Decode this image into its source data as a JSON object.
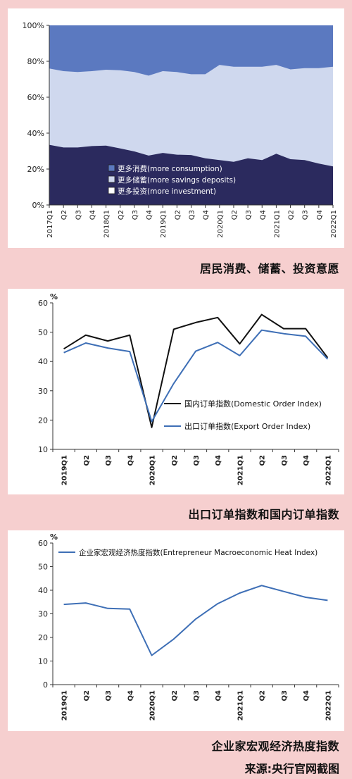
{
  "captions": {
    "chart1": "居民消费、储蓄、投资意愿",
    "chart2": "出口订单指数和国内订单指数",
    "chart3": "企业家宏观经济热度指数",
    "source": "来源:央行官网截图"
  },
  "colors": {
    "background": "#f6cfcf",
    "consumption": "#5b79c0",
    "savings": "#cfd8ee",
    "investment": "#2b2a5e",
    "domestic": "#111111",
    "export": "#3e6fb6",
    "heat": "#3e6fb6"
  },
  "chart_data": [
    {
      "type": "area",
      "stacked": true,
      "x": [
        "2017Q1",
        "Q2",
        "Q3",
        "Q4",
        "2018Q1",
        "Q2",
        "Q3",
        "Q4",
        "2019Q1",
        "Q2",
        "Q3",
        "Q4",
        "2020Q1",
        "Q2",
        "Q3",
        "Q4",
        "2021Q1",
        "Q2",
        "Q3",
        "Q4",
        "2022Q1"
      ],
      "yticks": [
        "0%",
        "20%",
        "40%",
        "60%",
        "80%",
        "100%"
      ],
      "ylim": [
        0,
        100
      ],
      "series": [
        {
          "name": "更多投资(more investment)",
          "values": [
            33.5,
            32,
            32,
            32.8,
            33,
            31.5,
            29.8,
            27.5,
            29,
            28,
            27.8,
            26,
            25,
            24,
            26,
            25,
            28.5,
            25.5,
            25,
            23,
            21.5
          ]
        },
        {
          "name": "更多储蓄(more savings deposits)",
          "values": [
            42.5,
            42.5,
            42,
            41.7,
            42.3,
            43.5,
            44.2,
            44.5,
            45.5,
            46,
            45,
            46.8,
            53,
            53,
            51,
            52,
            49.5,
            50,
            51.2,
            53.2,
            55.5
          ]
        },
        {
          "name": "更多消费(more consumption)",
          "values": [
            24,
            25.5,
            26,
            25.5,
            24.7,
            25,
            26,
            28,
            25.5,
            26,
            27.2,
            27.2,
            22,
            23,
            23,
            23,
            22,
            24.5,
            23.8,
            23.8,
            23
          ]
        }
      ],
      "legend": [
        "更多消费(more consumption)",
        "更多储蓄(more savings deposits)",
        "更多投资(more investment)"
      ],
      "legend_position": "bottom-center",
      "grid": false
    },
    {
      "type": "line",
      "x": [
        "2019Q1",
        "Q2",
        "Q3",
        "Q4",
        "2020Q1",
        "Q2",
        "Q3",
        "Q4",
        "2021Q1",
        "Q2",
        "Q3",
        "Q4",
        "2022Q1"
      ],
      "yunit": "%",
      "yticks": [
        "10",
        "20",
        "30",
        "40",
        "50",
        "60"
      ],
      "ylim": [
        10,
        60
      ],
      "series": [
        {
          "name": "国内订单指数(Domestic Order Index)",
          "values": [
            44.3,
            49,
            47,
            49,
            17.5,
            51,
            53.3,
            55,
            46,
            56,
            51.2,
            51.2,
            41.3
          ]
        },
        {
          "name": "出口订单指数(Export Order Index)",
          "values": [
            43,
            46.3,
            44.6,
            43.4,
            19.5,
            32.5,
            43.5,
            46.5,
            42,
            50.7,
            49.5,
            48.6,
            40.8
          ]
        }
      ],
      "legend_position": "right-inside",
      "grid": false
    },
    {
      "type": "line",
      "x": [
        "2019Q1",
        "Q2",
        "Q3",
        "Q4",
        "2020Q1",
        "Q2",
        "Q3",
        "Q4",
        "2021Q1",
        "Q2",
        "Q3",
        "Q4",
        "2022Q1"
      ],
      "yunit": "%",
      "yticks": [
        "0",
        "10",
        "20",
        "30",
        "40",
        "50",
        "60"
      ],
      "ylim": [
        0,
        60
      ],
      "series": [
        {
          "name": "企业家宏观经济热度指数(Entrepreneur Macroeconomic Heat Index)",
          "values": [
            34,
            34.6,
            32.3,
            32,
            12.4,
            19.3,
            27.8,
            34.3,
            38.8,
            42,
            39.5,
            37,
            35.7
          ]
        }
      ],
      "legend_position": "top-inside",
      "grid": false
    }
  ]
}
